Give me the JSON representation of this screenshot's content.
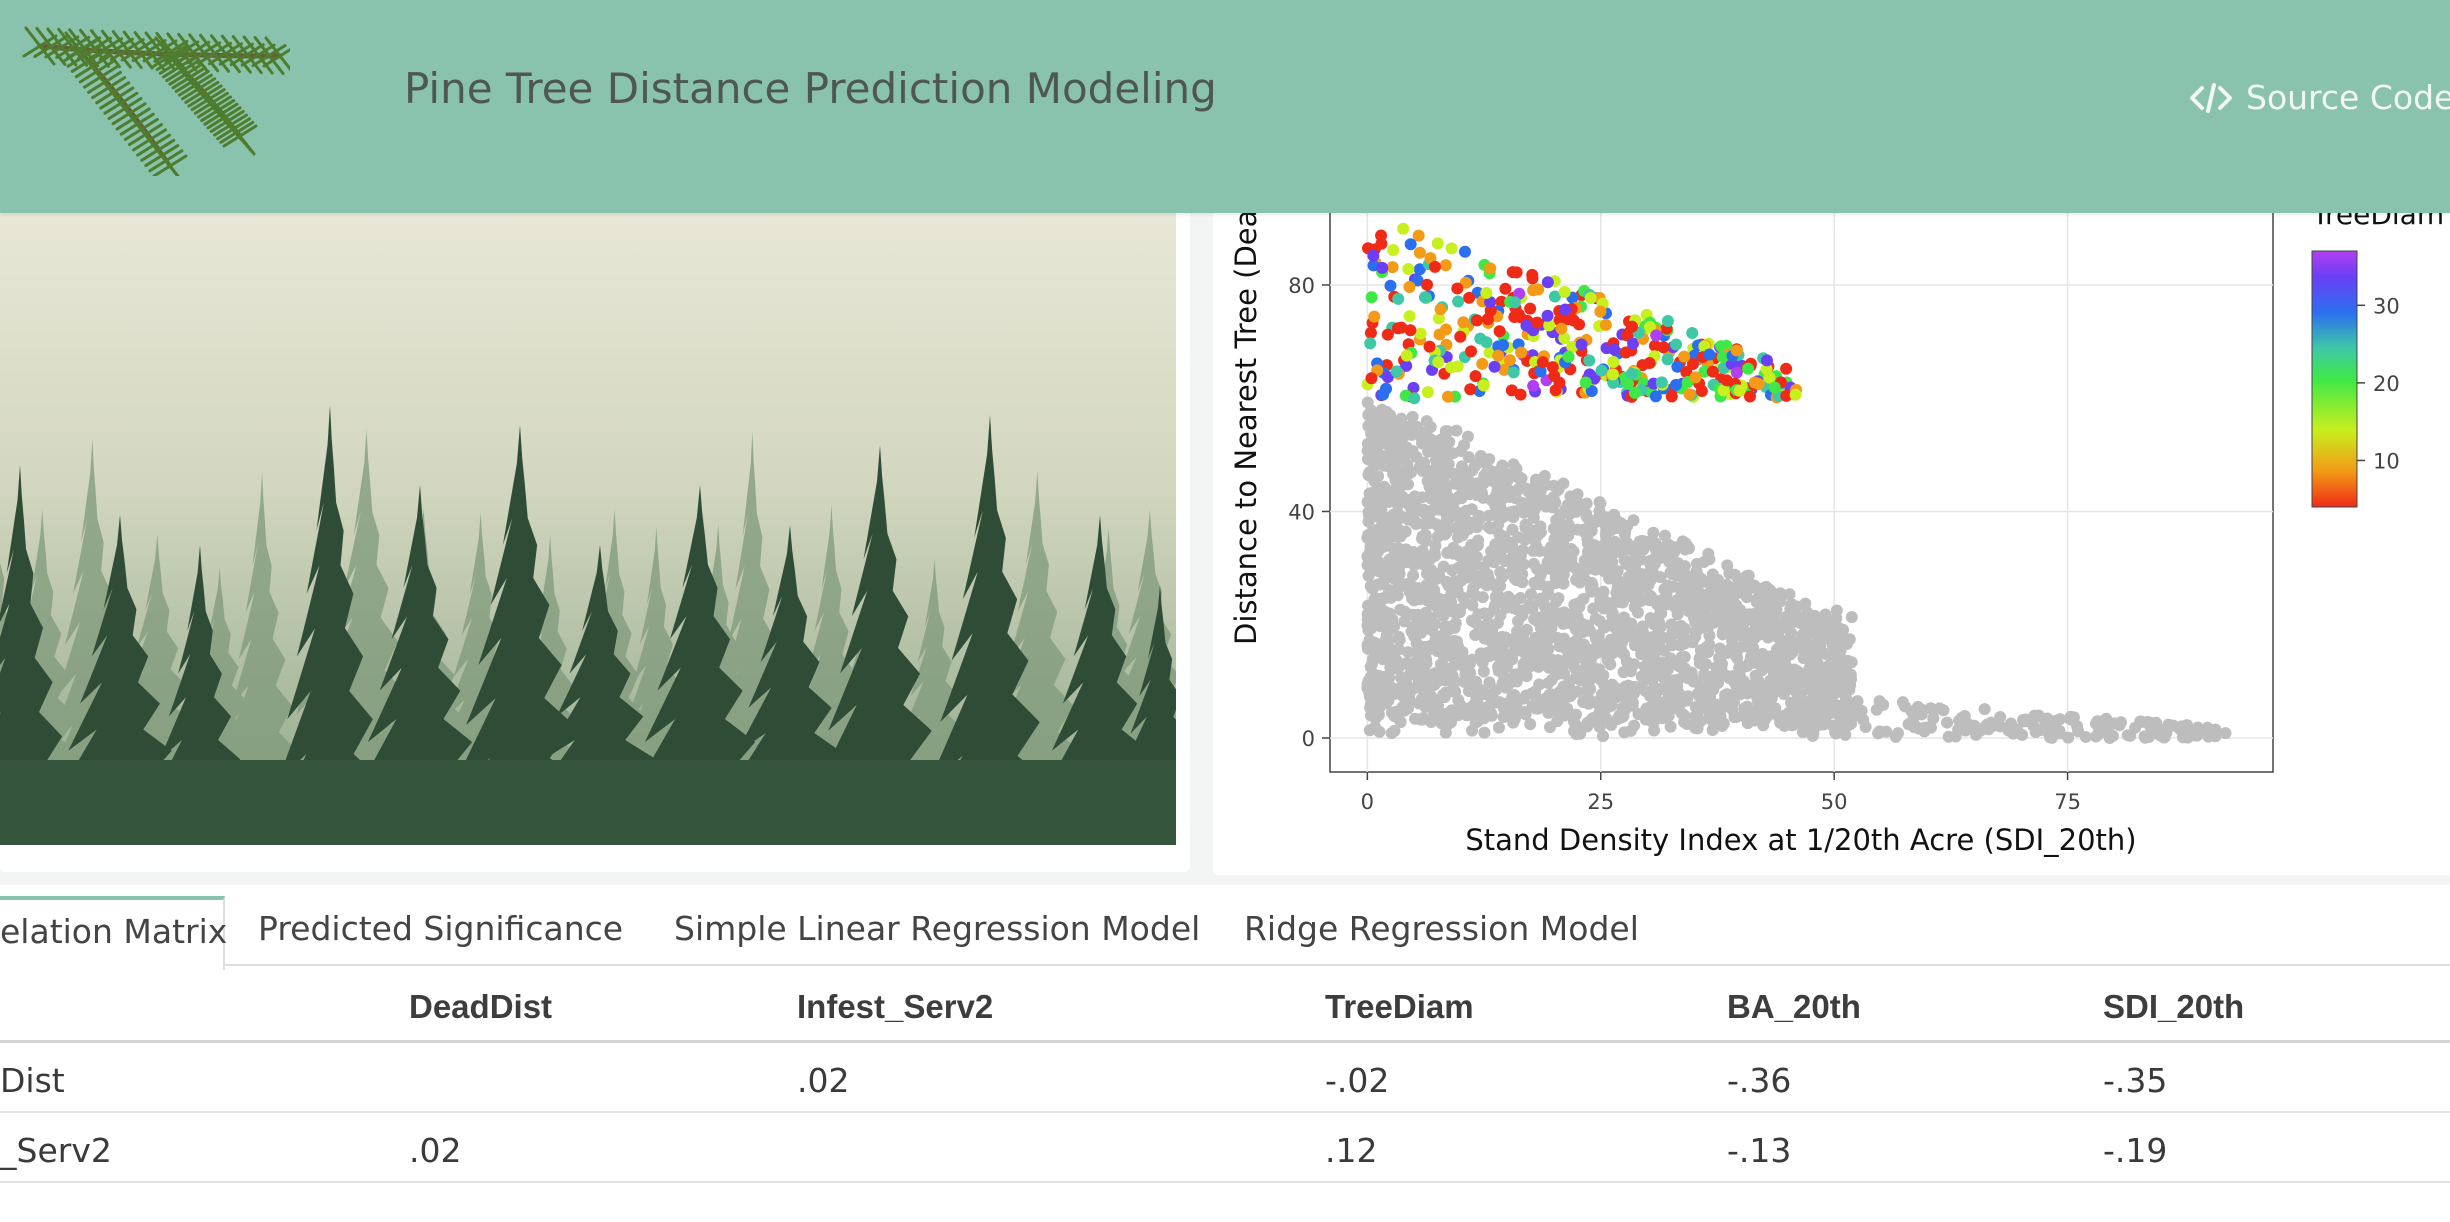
{
  "header": {
    "title": "Pine Tree Distance Prediction Modeling",
    "source_code_label": "Source Code"
  },
  "chart_data": {
    "type": "scatter",
    "xlabel": "Stand Density Index at 1/20th Acre (SDI_20th)",
    "ylabel": "Distance to Nearest Tree (Dea",
    "x_ticks": [
      "0",
      "25",
      "50",
      "75"
    ],
    "y_ticks": [
      "0",
      "40",
      "80"
    ],
    "xlim": [
      -4,
      97
    ],
    "ylim": [
      -6,
      95
    ],
    "grid": true,
    "colorbar": {
      "title": "TreeDiam",
      "ticks": [
        "10",
        "20",
        "30"
      ],
      "range": [
        4,
        37
      ],
      "colors": [
        "#ef2b18",
        "#f39a16",
        "#c8ef1e",
        "#3ee847",
        "#3fc8a6",
        "#2a6ff0",
        "#6b3ff5",
        "#b13ff2"
      ]
    },
    "series": [
      {
        "color": "#bdbdbd",
        "note": "grey points, DeadDist < 60",
        "x_range": [
          0,
          92
        ],
        "y_range": [
          0,
          60
        ]
      },
      {
        "color": "by TreeDiam",
        "x_range": [
          0,
          47
        ],
        "y_range": [
          60,
          93
        ]
      }
    ]
  },
  "tabs": [
    {
      "label": "elation Matrix",
      "active": true
    },
    {
      "label": "Predicted Significance",
      "active": false
    },
    {
      "label": "Simple Linear Regression Model",
      "active": false
    },
    {
      "label": "Ridge Regression Model",
      "active": false
    }
  ],
  "table": {
    "columns": [
      "",
      "DeadDist",
      "Infest_Serv2",
      "TreeDiam",
      "BA_20th",
      "SDI_20th"
    ],
    "rows": [
      [
        "Dist",
        "",
        ".02",
        "-.02",
        "-.36",
        "-.35"
      ],
      [
        "_Serv2",
        ".02",
        "",
        ".12",
        "-.13",
        "-.19"
      ]
    ]
  }
}
